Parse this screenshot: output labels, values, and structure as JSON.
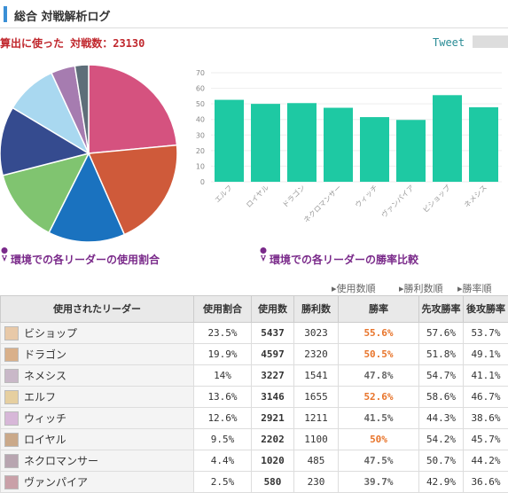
{
  "header": {
    "title": "総合 対戦解析ログ"
  },
  "summary": "算出に使った 対戦数：23130",
  "tweet": "Tweet",
  "chart_data": [
    {
      "type": "pie",
      "title": "環境での各リーダーの使用割合",
      "values": [
        23.5,
        19.9,
        14,
        13.6,
        12.6,
        9.5,
        4.4,
        2.5
      ],
      "colors": [
        "#d5527f",
        "#cf5a3a",
        "#1a72bf",
        "#80c470",
        "#354b8f",
        "#a9d8f0",
        "#a67cb0",
        "#5e6e79"
      ]
    },
    {
      "type": "bar",
      "title": "環境での各リーダーの勝率比較",
      "categories": [
        "エルフ",
        "ロイヤル",
        "ドラゴン",
        "ネクロマンサー",
        "ウィッチ",
        "ヴァンパイア",
        "ビショップ",
        "ネメシス"
      ],
      "values": [
        52.6,
        50,
        50.5,
        47.5,
        41.5,
        39.7,
        55.6,
        47.8
      ],
      "color": "#1ec9a3",
      "ylim": [
        0,
        70
      ],
      "yticks": [
        0,
        10,
        20,
        30,
        40,
        50,
        60,
        70
      ],
      "grid": true
    }
  ],
  "sort_links": [
    "使用数順",
    "勝利数順",
    "勝率順"
  ],
  "table": {
    "columns": [
      "使用されたリーダー",
      "使用割合",
      "使用数",
      "勝利数",
      "勝率",
      "先攻勝率",
      "後攻勝率"
    ],
    "rows": [
      [
        "ビショップ",
        "23.5%",
        "5437",
        "3023",
        "55.6%",
        "57.6%",
        "53.7%"
      ],
      [
        "ドラゴン",
        "19.9%",
        "4597",
        "2320",
        "50.5%",
        "51.8%",
        "49.1%"
      ],
      [
        "ネメシス",
        "14%",
        "3227",
        "1541",
        "47.8%",
        "54.7%",
        "41.1%"
      ],
      [
        "エルフ",
        "13.6%",
        "3146",
        "1655",
        "52.6%",
        "58.6%",
        "46.7%"
      ],
      [
        "ウィッチ",
        "12.6%",
        "2921",
        "1211",
        "41.5%",
        "44.3%",
        "38.6%"
      ],
      [
        "ロイヤル",
        "9.5%",
        "2202",
        "1100",
        "50%",
        "54.2%",
        "45.7%"
      ],
      [
        "ネクロマンサー",
        "4.4%",
        "1020",
        "485",
        "47.5%",
        "50.7%",
        "44.2%"
      ],
      [
        "ヴァンパイア",
        "2.5%",
        "580",
        "230",
        "39.7%",
        "42.9%",
        "36.6%"
      ]
    ]
  }
}
